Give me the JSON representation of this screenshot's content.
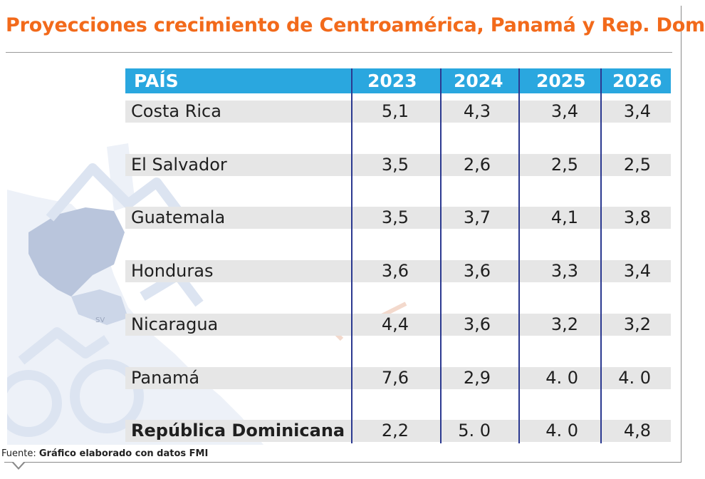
{
  "title": "Proyecciones crecimiento de Centroamérica, Panamá y Rep. Dom.",
  "colors": {
    "title": "#f26a1b",
    "header_bg": "#2aa7df",
    "row_band": "#e6e6e6",
    "divider": "#2b3990"
  },
  "chart_data": {
    "type": "table",
    "title": "Proyecciones crecimiento de Centroamérica, Panamá y Rep. Dom.",
    "columns": [
      "PAÍS",
      "2023",
      "2024",
      "2025",
      "2026"
    ],
    "rows": [
      {
        "country": "Costa Rica",
        "values": [
          "5,1",
          "4,3",
          "3,4",
          "3,4"
        ],
        "bold": false
      },
      {
        "country": "El Salvador",
        "values": [
          "3,5",
          "2,6",
          "2,5",
          "2,5"
        ],
        "bold": false
      },
      {
        "country": "Guatemala",
        "values": [
          "3,5",
          "3,7",
          "4,1",
          "3,8"
        ],
        "bold": false
      },
      {
        "country": "Honduras",
        "values": [
          "3,6",
          "3,6",
          "3,3",
          "3,4"
        ],
        "bold": false
      },
      {
        "country": "Nicaragua",
        "values": [
          "4,4",
          "3,6",
          "3,2",
          "3,2"
        ],
        "bold": false
      },
      {
        "country": "Panamá",
        "values": [
          "7,6",
          "2,9",
          "4. 0",
          "4. 0"
        ],
        "bold": false
      },
      {
        "country": "República Dominicana",
        "values": [
          "2,2",
          "5. 0",
          "4. 0",
          "4,8"
        ],
        "bold": true
      }
    ]
  },
  "footnote": {
    "prefix": "Fuente: ",
    "text": "Gráfico elaborado con datos FMI"
  },
  "map_labels": {
    "sv": "SV"
  }
}
